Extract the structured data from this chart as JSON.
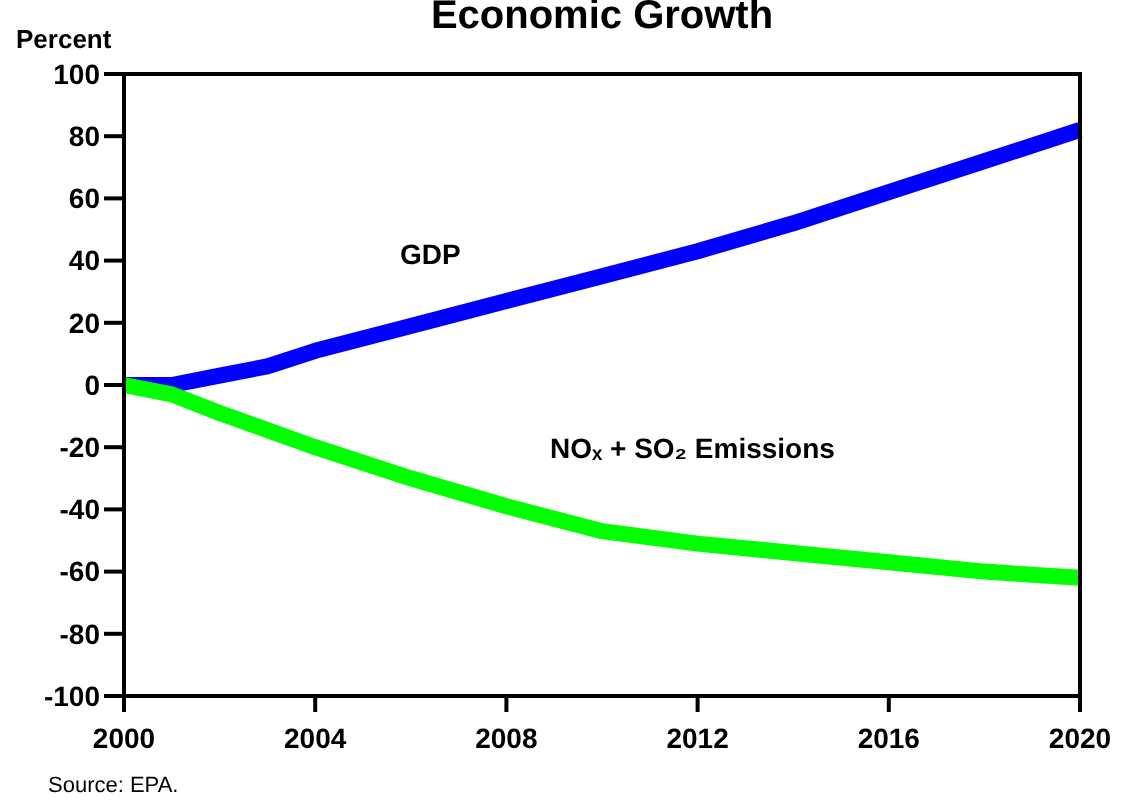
{
  "chart_data": {
    "type": "line",
    "title": "Economic Growth",
    "ylabel": "Percent",
    "annotations": [
      "Source: EPA."
    ],
    "xlim": [
      2000,
      2020
    ],
    "xticks": [
      2000,
      2004,
      2008,
      2012,
      2016,
      2020
    ],
    "ylim": [
      -100,
      100
    ],
    "yticks": [
      -100,
      -80,
      -60,
      -40,
      -20,
      0,
      20,
      40,
      60,
      80,
      100
    ],
    "grid": false,
    "marker": "none",
    "line_style": "solid",
    "series": [
      {
        "name": "GDP",
        "color": "#0000ff",
        "x": [
          2000,
          2001,
          2002,
          2003,
          2004,
          2006,
          2008,
          2010,
          2012,
          2014,
          2016,
          2018,
          2020
        ],
        "values": [
          0,
          0,
          3,
          6,
          11,
          19,
          27,
          35,
          43,
          52,
          62,
          72,
          82
        ]
      },
      {
        "name": "NOₓ + SO₂ Emissions",
        "color": "#00ff00",
        "x": [
          2000,
          2001,
          2002,
          2004,
          2006,
          2008,
          2010,
          2012,
          2014,
          2016,
          2018,
          2020
        ],
        "values": [
          0,
          -3,
          -9,
          -20,
          -30,
          -39,
          -47,
          -51,
          -54,
          -57,
          -60,
          -62
        ]
      }
    ]
  }
}
